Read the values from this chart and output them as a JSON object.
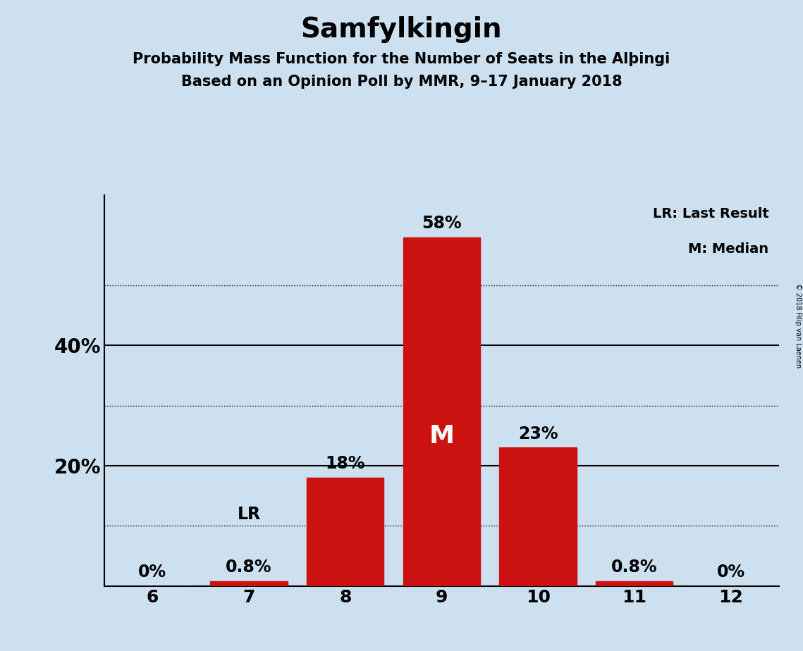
{
  "title": "Samfylkingin",
  "subtitle1": "Probability Mass Function for the Number of Seats in the Alþingi",
  "subtitle2": "Based on an Opinion Poll by MMR, 9–17 January 2018",
  "categories": [
    6,
    7,
    8,
    9,
    10,
    11,
    12
  ],
  "values": [
    0.0,
    0.8,
    18.0,
    58.0,
    23.0,
    0.8,
    0.0
  ],
  "bar_color": "#cc1111",
  "background_color": "#cce0f0",
  "bar_labels": [
    "0%",
    "0.8%",
    "18%",
    "58%",
    "23%",
    "0.8%",
    "0%"
  ],
  "median_seat": 9,
  "lr_seat": 7,
  "ylim": [
    0,
    65
  ],
  "solid_yticks": [
    20,
    40
  ],
  "dotted_yticks": [
    10,
    30,
    50
  ],
  "legend_text1": "LR: Last Result",
  "legend_text2": "M: Median",
  "copyright_text": "© 2018 Filip van Laenen",
  "title_fontsize": 28,
  "subtitle_fontsize": 15,
  "bar_label_fontsize": 17,
  "median_label_fontsize": 26,
  "axis_fontsize": 18,
  "ytick_label_fontsize": 20
}
